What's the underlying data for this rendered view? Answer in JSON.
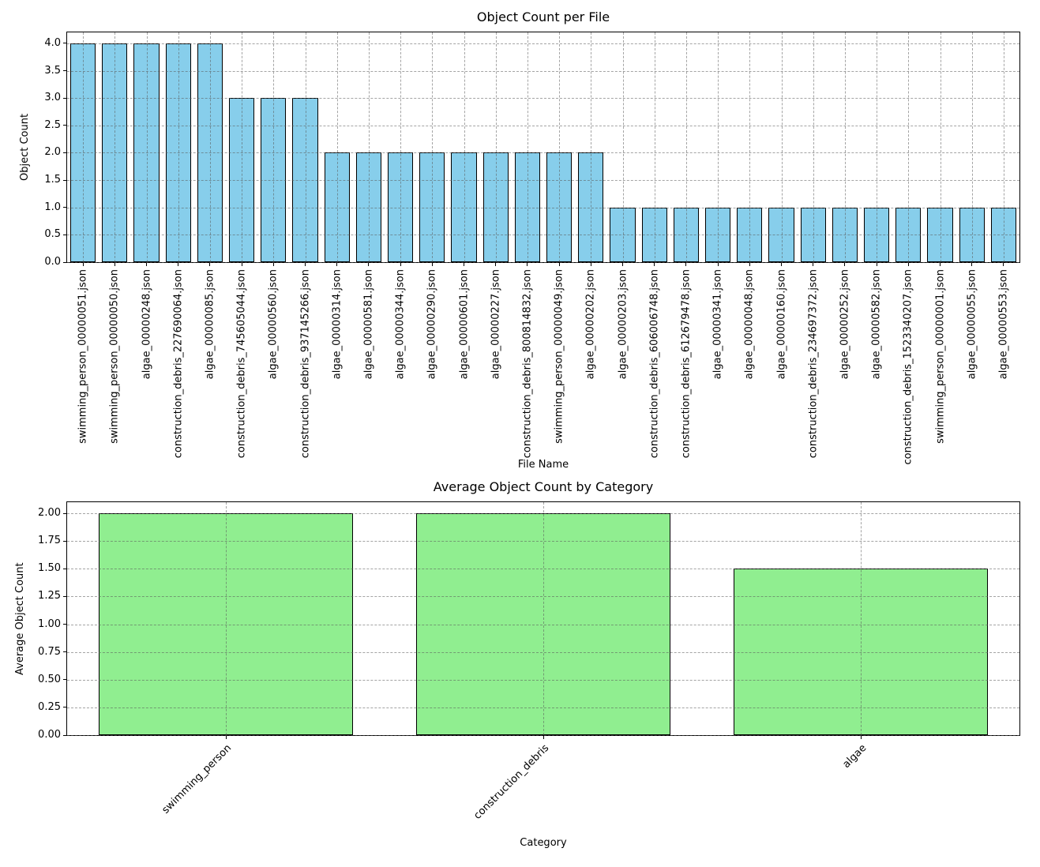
{
  "chart_data": [
    {
      "type": "bar",
      "title": "Object Count per File",
      "xlabel": "File Name",
      "ylabel": "Object Count",
      "ylim": [
        0,
        4.2
      ],
      "yticks": [
        "0.0",
        "0.5",
        "1.0",
        "1.5",
        "2.0",
        "2.5",
        "3.0",
        "3.5",
        "4.0"
      ],
      "grid": "dashed",
      "legend": "none",
      "bar_color": "#87CEEB",
      "edge_color": "#000000",
      "categories": [
        "swimming_person_00000051.json",
        "swimming_person_00000050.json",
        "algae_00000248.json",
        "construction_debris_227690064.json",
        "algae_00000085.json",
        "construction_debris_745605044.json",
        "algae_00000560.json",
        "construction_debris_937145266.json",
        "algae_00000314.json",
        "algae_00000581.json",
        "algae_00000344.json",
        "algae_00000290.json",
        "algae_00000601.json",
        "algae_00000227.json",
        "construction_debris_800814832.json",
        "swimming_person_00000049.json",
        "algae_00000202.json",
        "algae_00000203.json",
        "construction_debris_606006748.json",
        "construction_debris_612679478.json",
        "algae_00000341.json",
        "algae_00000048.json",
        "algae_00000160.json",
        "construction_debris_234697372.json",
        "algae_00000252.json",
        "algae_00000582.json",
        "construction_debris_1523340207.json",
        "swimming_person_00000001.json",
        "algae_00000055.json",
        "algae_00000553.json"
      ],
      "values": [
        4,
        4,
        4,
        4,
        4,
        3,
        3,
        3,
        2,
        2,
        2,
        2,
        2,
        2,
        2,
        2,
        2,
        1,
        1,
        1,
        1,
        1,
        1,
        1,
        1,
        1,
        1,
        1,
        1,
        1
      ]
    },
    {
      "type": "bar",
      "title": "Average Object Count by Category",
      "xlabel": "Category",
      "ylabel": "Average Object Count",
      "ylim": [
        0,
        2.1
      ],
      "yticks": [
        "0.00",
        "0.25",
        "0.50",
        "0.75",
        "1.00",
        "1.25",
        "1.50",
        "1.75",
        "2.00"
      ],
      "grid": "dashed",
      "legend": "none",
      "bar_color": "#90EE90",
      "edge_color": "#000000",
      "categories": [
        "swimming_person",
        "construction_debris",
        "algae"
      ],
      "values": [
        2.0,
        2.0,
        1.5
      ]
    }
  ]
}
